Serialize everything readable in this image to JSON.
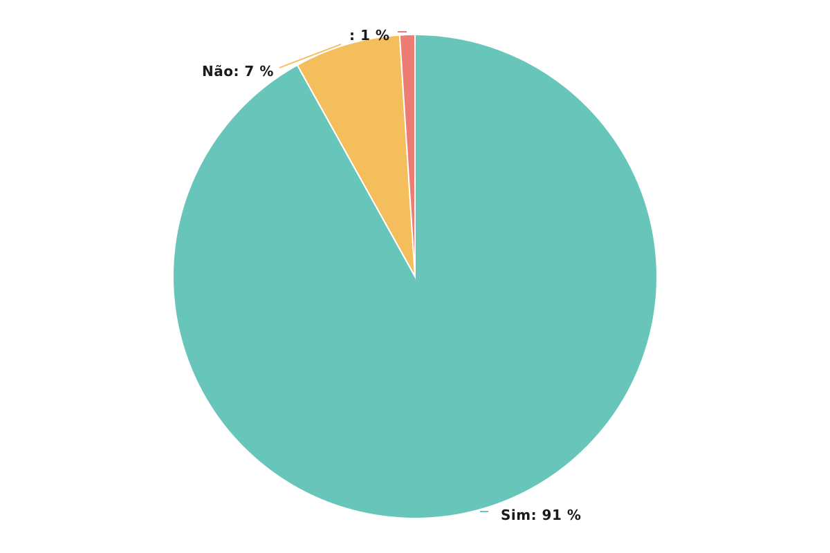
{
  "chart_data": {
    "type": "pie",
    "start_angle_deg": 0,
    "direction": "clockwise",
    "slices": [
      {
        "name": "Sim",
        "value": 91,
        "label": "Sim: 91 %",
        "color": "#67c6b9",
        "label_side": "right"
      },
      {
        "name": "Não",
        "value": 7,
        "label": "Não: 7 %",
        "color": "#f4be5c",
        "label_side": "left"
      },
      {
        "name": "",
        "value": 1,
        "label": ": 1 %",
        "color": "#ed7d72",
        "label_side": "left"
      }
    ],
    "legend": "none"
  }
}
